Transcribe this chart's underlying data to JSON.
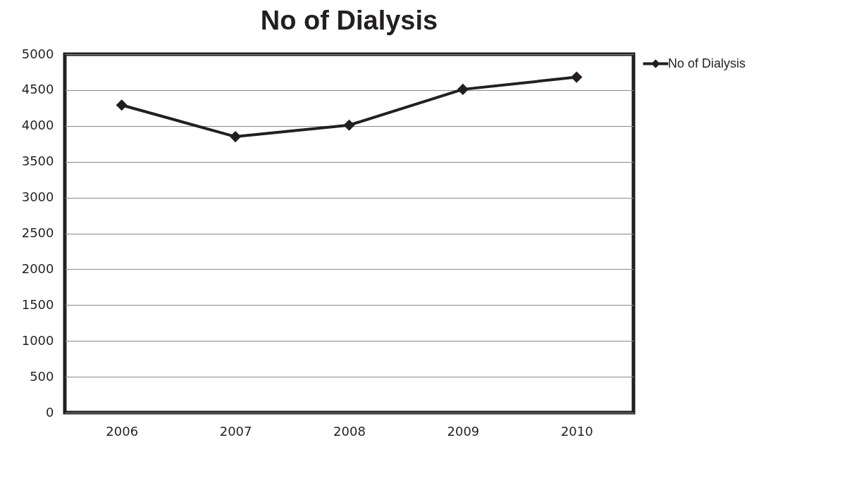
{
  "chart_data": {
    "type": "line",
    "title": "No of Dialysis",
    "categories": [
      "2006",
      "2007",
      "2008",
      "2009",
      "2010"
    ],
    "series": [
      {
        "name": "No of Dialysis",
        "color": "#231f20",
        "values": [
          4290,
          3850,
          4010,
          4510,
          4680
        ]
      }
    ],
    "ylim": [
      0,
      5000
    ],
    "yticks": [
      0,
      500,
      1000,
      1500,
      2000,
      2500,
      3000,
      3500,
      4000,
      4500,
      5000
    ],
    "grid": "y",
    "legend": "right",
    "marker": "diamond",
    "line_style": "solid"
  }
}
